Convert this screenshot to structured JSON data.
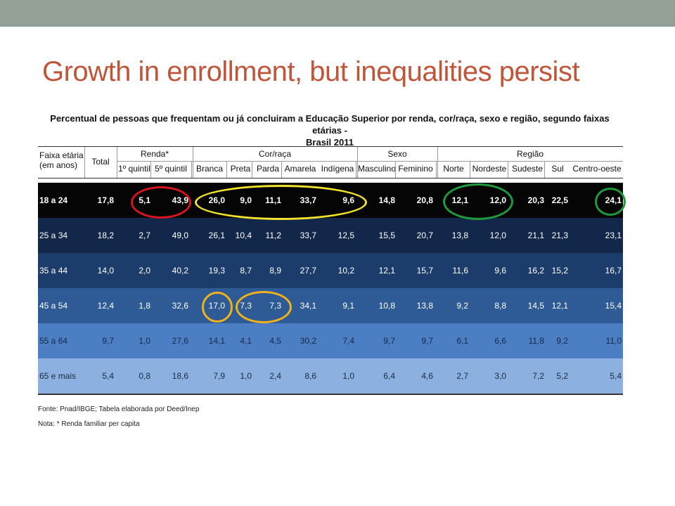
{
  "slide": {
    "title": "Growth in enrollment, but inequalities persist"
  },
  "table": {
    "title_line1": "Percentual de pessoas que frequentam ou já concluiram a Educação Superior por renda, cor/raça, sexo e região, segundo faixas etárias -",
    "title_line2": "Brasil 2011",
    "header": {
      "age_group": [
        "Faixa etária",
        "(em anos)"
      ],
      "total": "Total",
      "groups": [
        "Renda*",
        "Cor/raça",
        "Sexo",
        "Região"
      ],
      "subcolumns": [
        "1º quintil",
        "5º quintil",
        "Branca",
        "Preta",
        "Parda",
        "Amarela",
        "Indígena",
        "Masculino",
        "Feminino",
        "Norte",
        "Nordeste",
        "Sudeste",
        "Sul",
        "Centro-oeste"
      ]
    },
    "rows": [
      {
        "label": "18 a 24",
        "values": [
          "17,8",
          "5,1",
          "43,9",
          "26,0",
          "9,0",
          "11,1",
          "33,7",
          "9,6",
          "14,8",
          "20,8",
          "12,1",
          "12,0",
          "20,3",
          "22,5",
          "24,1"
        ]
      },
      {
        "label": "25 a 34",
        "values": [
          "18,2",
          "2,7",
          "49,0",
          "26,1",
          "10,4",
          "11,2",
          "33,7",
          "12,5",
          "15,5",
          "20,7",
          "13,8",
          "12,0",
          "21,1",
          "21,3",
          "23,1"
        ]
      },
      {
        "label": "35 a 44",
        "values": [
          "14,0",
          "2,0",
          "40,2",
          "19,3",
          "8,7",
          "8,9",
          "27,7",
          "10,2",
          "12,1",
          "15,7",
          "11,6",
          "9,6",
          "16,2",
          "15,2",
          "16,7"
        ]
      },
      {
        "label": "45 a 54",
        "values": [
          "12,4",
          "1,8",
          "32,6",
          "17,0",
          "7,3",
          "7,3",
          "34,1",
          "9,1",
          "10,8",
          "13,8",
          "9,2",
          "8,8",
          "14,5",
          "12,1",
          "15,4"
        ]
      },
      {
        "label": "55 a 64",
        "values": [
          "9,7",
          "1,0",
          "27,6",
          "14,1",
          "4,1",
          "4,5",
          "30,2",
          "7,4",
          "9,7",
          "9,7",
          "6,1",
          "6,6",
          "11,8",
          "9,2",
          "11,0"
        ]
      },
      {
        "label": "65 e mais",
        "values": [
          "5,4",
          "0,8",
          "18,6",
          "7,9",
          "1,0",
          "2,4",
          "8,6",
          "1,0",
          "6,4",
          "4,6",
          "2,7",
          "3,0",
          "7,2",
          "5,2",
          "5,4"
        ]
      }
    ],
    "row_colors": [
      "#050505",
      "#13274a",
      "#1c3c6c",
      "#2e5b95",
      "#4b7ec2",
      "#8cb0df"
    ],
    "source": "Fonte: Pnad/IBGE; Tabela elaborada por Deed/Inep",
    "note": "Nota: * Renda familiar per capita"
  },
  "colors": {
    "title": "#c0553a",
    "topbar": "#949f96",
    "circle_red": "#d8141c",
    "circle_yellow": "#f2e22a",
    "circle_green": "#1f9a3d",
    "circle_orange": "#f0b21c"
  }
}
